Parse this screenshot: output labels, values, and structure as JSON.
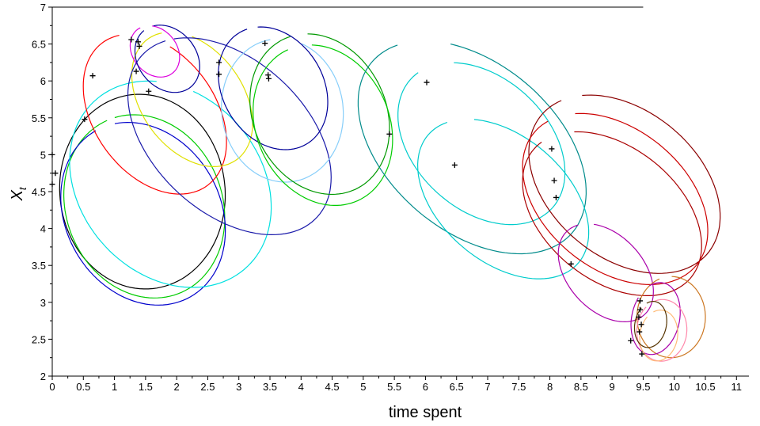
{
  "chart_data": {
    "type": "line",
    "title": "",
    "xlabel": "time spent",
    "ylabel_main": "X",
    "ylabel_sub": "t",
    "xlim": [
      0,
      11.2
    ],
    "ylim": [
      2,
      7
    ],
    "xticks": [
      0,
      0.5,
      1,
      1.5,
      2,
      2.5,
      3,
      3.5,
      4,
      4.5,
      5,
      5.5,
      6,
      6.5,
      7,
      7.5,
      8,
      8.5,
      9,
      9.5,
      10,
      10.5,
      11
    ],
    "xtick_labels": [
      "0",
      "0.5",
      "1",
      "1.5",
      "2",
      "2.5",
      "3",
      "3.5",
      "4",
      "4.5",
      "5",
      "5.5",
      "6",
      "6.5",
      "7",
      "7.5",
      "8",
      "8.5",
      "9",
      "9.5",
      "10",
      "10.5",
      "11"
    ],
    "yticks": [
      2,
      2.5,
      3,
      3.5,
      4,
      4.5,
      5,
      5.5,
      6,
      6.5,
      7
    ],
    "ytick_labels": [
      "2",
      "2.5",
      "3",
      "3.5",
      "4",
      "4.5",
      "5",
      "5.5",
      "6",
      "6.5",
      "7"
    ],
    "grid": false,
    "top_line": {
      "x0": 0,
      "x1": 9.5,
      "y": 7
    },
    "markers": [
      [
        0.05,
        4.75
      ],
      [
        0.0,
        4.6
      ],
      [
        0.0,
        5.0
      ],
      [
        0.52,
        5.48
      ],
      [
        0.65,
        6.07
      ],
      [
        1.27,
        6.56
      ],
      [
        1.38,
        6.53
      ],
      [
        1.4,
        6.47
      ],
      [
        1.35,
        6.13
      ],
      [
        1.55,
        5.86
      ],
      [
        2.68,
        6.25
      ],
      [
        2.68,
        6.09
      ],
      [
        3.42,
        6.51
      ],
      [
        3.47,
        6.08
      ],
      [
        3.48,
        6.03
      ],
      [
        5.42,
        5.28
      ],
      [
        6.02,
        5.98
      ],
      [
        6.47,
        4.86
      ],
      [
        8.03,
        5.08
      ],
      [
        8.07,
        4.65
      ],
      [
        8.1,
        4.42
      ],
      [
        8.34,
        3.52
      ],
      [
        9.3,
        2.48
      ],
      [
        9.43,
        2.8
      ],
      [
        9.45,
        3.02
      ],
      [
        9.44,
        2.6
      ],
      [
        9.47,
        2.7
      ],
      [
        9.48,
        2.3
      ],
      [
        9.45,
        2.9
      ]
    ],
    "series": [
      {
        "color": "#000000",
        "cx": 1.45,
        "cy": 4.5,
        "rx": 1.35,
        "ry": 1.3,
        "rot": -38,
        "a0": 140,
        "a1": 505
      },
      {
        "color": "#00cc00",
        "cx": 1.48,
        "cy": 4.3,
        "rx": 1.35,
        "ry": 1.18,
        "rot": -36,
        "a0": 150,
        "a1": 505
      },
      {
        "color": "#0000cc",
        "cx": 1.46,
        "cy": 4.2,
        "rx": 1.4,
        "ry": 1.15,
        "rot": -35,
        "a0": 155,
        "a1": 500
      },
      {
        "color": "#00e0e0",
        "cx": 1.9,
        "cy": 4.6,
        "rx": 1.7,
        "ry": 1.3,
        "rot": -28,
        "a0": 120,
        "a1": 460
      },
      {
        "color": "#ff0000",
        "cx": 1.65,
        "cy": 5.55,
        "rx": 1.3,
        "ry": 0.9,
        "rot": -40,
        "a0": 150,
        "a1": 470
      },
      {
        "color": "#e0e000",
        "cx": 2.25,
        "cy": 5.75,
        "rx": 1.1,
        "ry": 0.75,
        "rot": -40,
        "a0": 150,
        "a1": 480
      },
      {
        "color": "#dd00dd",
        "cx": 1.65,
        "cy": 6.4,
        "rx": 0.42,
        "ry": 0.32,
        "rot": -30,
        "a0": 150,
        "a1": 480
      },
      {
        "color": "#000099",
        "cx": 1.85,
        "cy": 6.3,
        "rx": 0.55,
        "ry": 0.42,
        "rot": -30,
        "a0": 160,
        "a1": 500
      },
      {
        "color": "#1a1aaa",
        "cx": 2.85,
        "cy": 5.25,
        "rx": 1.8,
        "ry": 1.1,
        "rot": -32,
        "a0": 150,
        "a1": 505
      },
      {
        "color": "#87cefa",
        "cx": 3.7,
        "cy": 5.6,
        "rx": 1.0,
        "ry": 0.95,
        "rot": -40,
        "a0": 140,
        "a1": 470
      },
      {
        "color": "#000099",
        "cx": 3.55,
        "cy": 5.9,
        "rx": 0.95,
        "ry": 0.75,
        "rot": -38,
        "a0": 150,
        "a1": 500
      },
      {
        "color": "#009900",
        "cx": 4.3,
        "cy": 5.55,
        "rx": 1.2,
        "ry": 1.0,
        "rot": -40,
        "a0": 150,
        "a1": 495
      },
      {
        "color": "#00cc00",
        "cx": 4.35,
        "cy": 5.4,
        "rx": 1.2,
        "ry": 1.0,
        "rot": -40,
        "a0": 155,
        "a1": 495
      },
      {
        "color": "#008b8b",
        "cx": 6.75,
        "cy": 5.1,
        "rx": 2.0,
        "ry": 1.2,
        "rot": -30,
        "a0": 150,
        "a1": 480
      },
      {
        "color": "#00cccc",
        "cx": 6.9,
        "cy": 5.15,
        "rx": 1.45,
        "ry": 0.95,
        "rot": -30,
        "a0": 160,
        "a1": 490
      },
      {
        "color": "#00cccc",
        "cx": 7.25,
        "cy": 4.4,
        "rx": 1.5,
        "ry": 0.9,
        "rot": -30,
        "a0": 150,
        "a1": 490
      },
      {
        "color": "#8b0000",
        "cx": 9.2,
        "cy": 4.6,
        "rx": 1.65,
        "ry": 1.05,
        "rot": -28,
        "a0": 150,
        "a1": 495
      },
      {
        "color": "#cc0000",
        "cx": 9.05,
        "cy": 4.4,
        "rx": 1.6,
        "ry": 1.0,
        "rot": -28,
        "a0": 155,
        "a1": 495
      },
      {
        "color": "#aa0000",
        "cx": 9.0,
        "cy": 4.2,
        "rx": 1.55,
        "ry": 0.95,
        "rot": -28,
        "a0": 160,
        "a1": 495
      },
      {
        "color": "#aa00aa",
        "cx": 8.9,
        "cy": 3.4,
        "rx": 0.85,
        "ry": 0.55,
        "rot": -35,
        "a0": 150,
        "a1": 490
      },
      {
        "color": "#cc7722",
        "cx": 9.95,
        "cy": 2.8,
        "rx": 0.55,
        "ry": 0.55,
        "rot": -30,
        "a0": 140,
        "a1": 480
      },
      {
        "color": "#aa00aa",
        "cx": 9.7,
        "cy": 2.78,
        "rx": 0.38,
        "ry": 0.5,
        "rot": -20,
        "a0": 160,
        "a1": 490
      },
      {
        "color": "#ff88aa",
        "cx": 9.8,
        "cy": 2.62,
        "rx": 0.4,
        "ry": 0.42,
        "rot": -20,
        "a0": 150,
        "a1": 490
      },
      {
        "color": "#ffbb77",
        "cx": 9.75,
        "cy": 2.55,
        "rx": 0.3,
        "ry": 0.35,
        "rot": -20,
        "a0": 150,
        "a1": 490
      },
      {
        "color": "#553300",
        "cx": 9.62,
        "cy": 2.7,
        "rx": 0.25,
        "ry": 0.32,
        "rot": -20,
        "a0": 150,
        "a1": 490
      }
    ]
  }
}
